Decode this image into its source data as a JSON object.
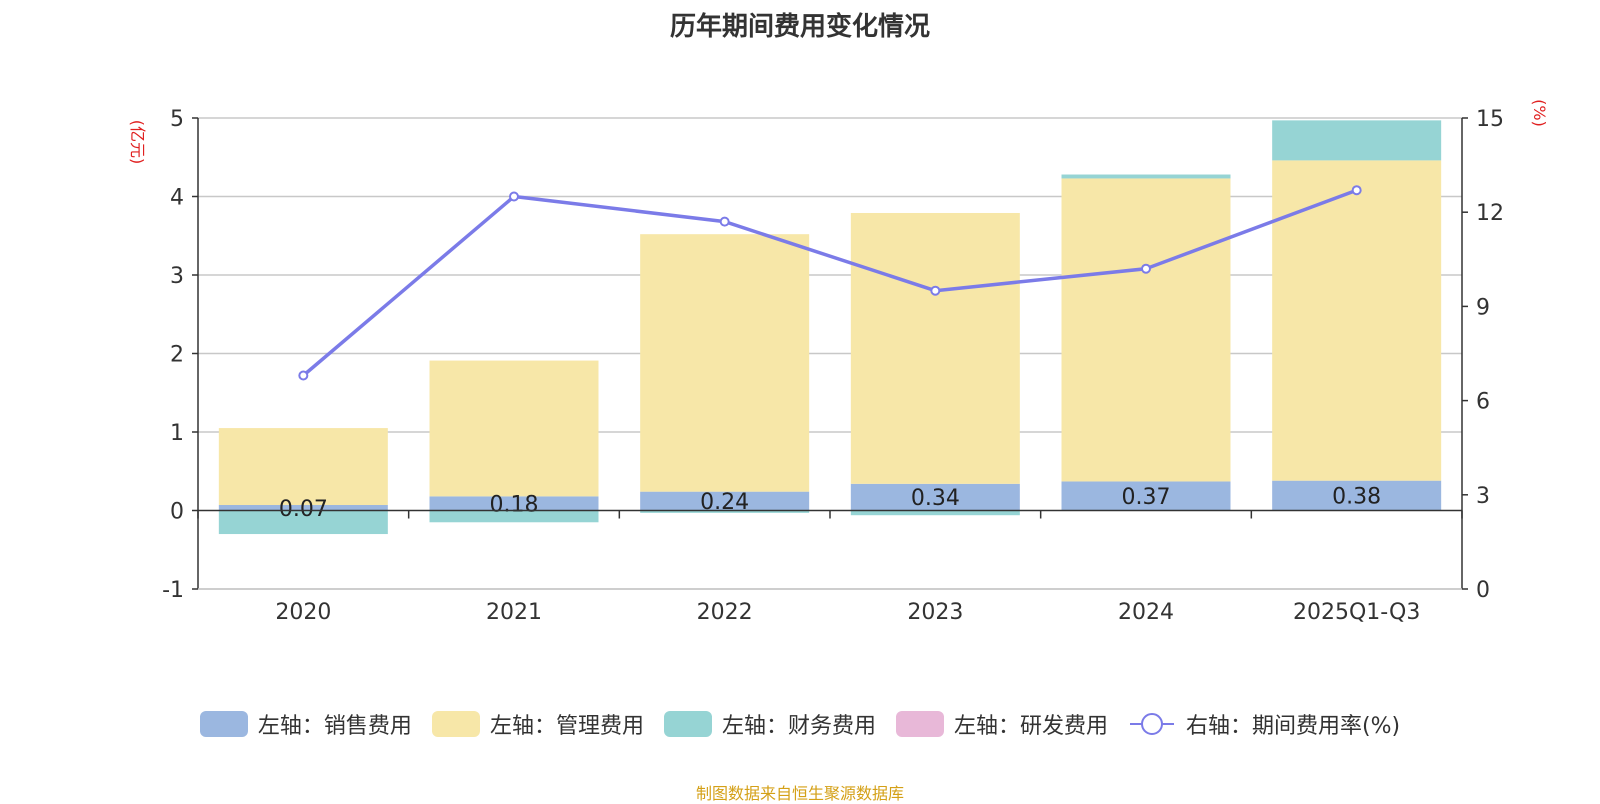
{
  "chart_data": {
    "type": "bar",
    "title": "历年期间费用变化情况",
    "categories": [
      "2020",
      "2021",
      "2022",
      "2023",
      "2024",
      "2025Q1-Q3"
    ],
    "left_axis": {
      "label": "(亿元)",
      "ylim": [
        -1,
        5
      ],
      "ticks": [
        "-1",
        "0",
        "1",
        "2",
        "3",
        "4",
        "5"
      ]
    },
    "right_axis": {
      "label": "(%)",
      "ylim": [
        0,
        15
      ],
      "ticks": [
        "0",
        "3",
        "6",
        "9",
        "12",
        "15"
      ]
    },
    "series": [
      {
        "name": "左轴：销售费用",
        "color": "#9bb7e0",
        "values": [
          0.07,
          0.18,
          0.24,
          0.34,
          0.37,
          0.38
        ],
        "labels": [
          "0.07",
          "0.18",
          "0.24",
          "0.34",
          "0.37",
          "0.38"
        ]
      },
      {
        "name": "左轴：管理费用",
        "color": "#f7e7a8",
        "values": [
          0.98,
          1.73,
          3.28,
          3.45,
          3.86,
          4.08
        ]
      },
      {
        "name": "左轴：财务费用",
        "color": "#96d4d4",
        "values": [
          -0.3,
          -0.15,
          -0.03,
          -0.06,
          0.05,
          0.51
        ]
      },
      {
        "name": "左轴：研发费用",
        "color": "#e8b8d8",
        "values": [
          0,
          0,
          0,
          0,
          0,
          0
        ]
      },
      {
        "name": "右轴：期间费用率(%)",
        "type": "line",
        "color": "#7b7be8",
        "values": [
          6.8,
          12.5,
          11.7,
          9.5,
          10.2,
          12.7
        ]
      }
    ],
    "legend_position": "bottom",
    "grid": true
  },
  "source": "制图数据来自恒生聚源数据库"
}
